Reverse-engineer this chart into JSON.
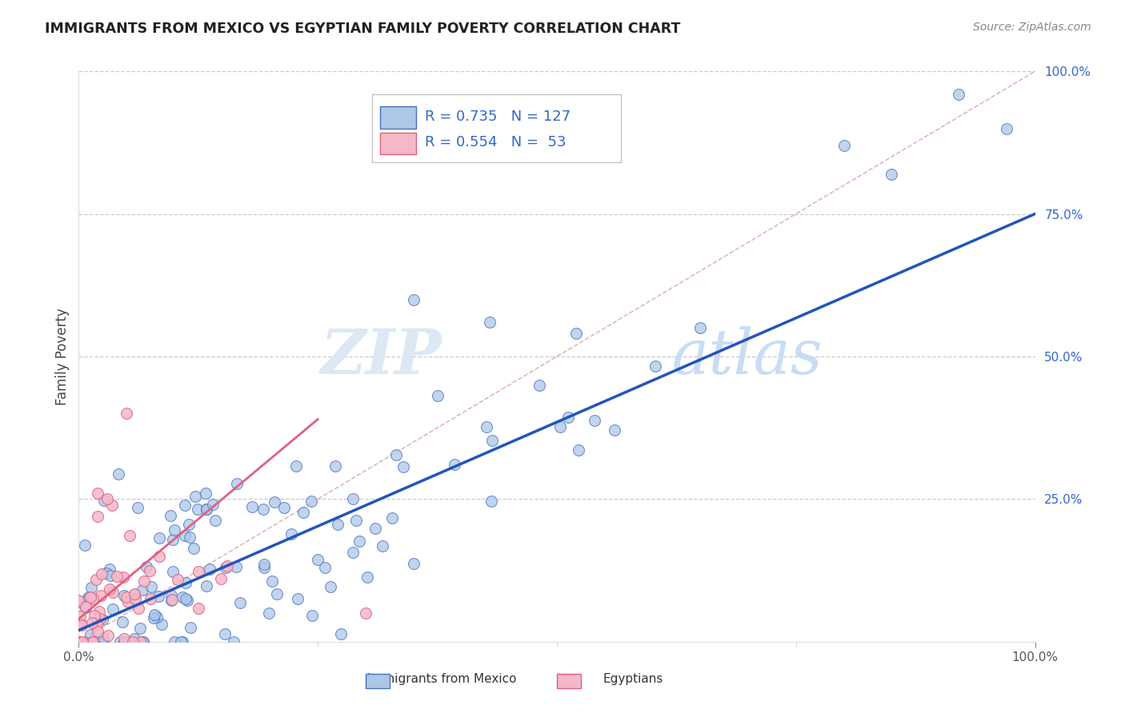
{
  "title": "IMMIGRANTS FROM MEXICO VS EGYPTIAN FAMILY POVERTY CORRELATION CHART",
  "source": "Source: ZipAtlas.com",
  "ylabel": "Family Poverty",
  "legend_label1": "Immigrants from Mexico",
  "legend_label2": "Egyptians",
  "r1": 0.735,
  "n1": 127,
  "r2": 0.554,
  "n2": 53,
  "color_blue_fill": "#aec6e8",
  "color_blue_edge": "#4472c4",
  "color_pink_fill": "#f4b8c8",
  "color_pink_edge": "#e06080",
  "color_blue_line": "#2255bb",
  "color_pink_line": "#e06080",
  "color_diag_line": "#ddaaaa",
  "color_grid": "#cccccc",
  "watermark_color": "#dde8f5",
  "watermark_color2": "#c8ddf5",
  "ytick_color": "#3366cc",
  "xtick_color": "#555555"
}
